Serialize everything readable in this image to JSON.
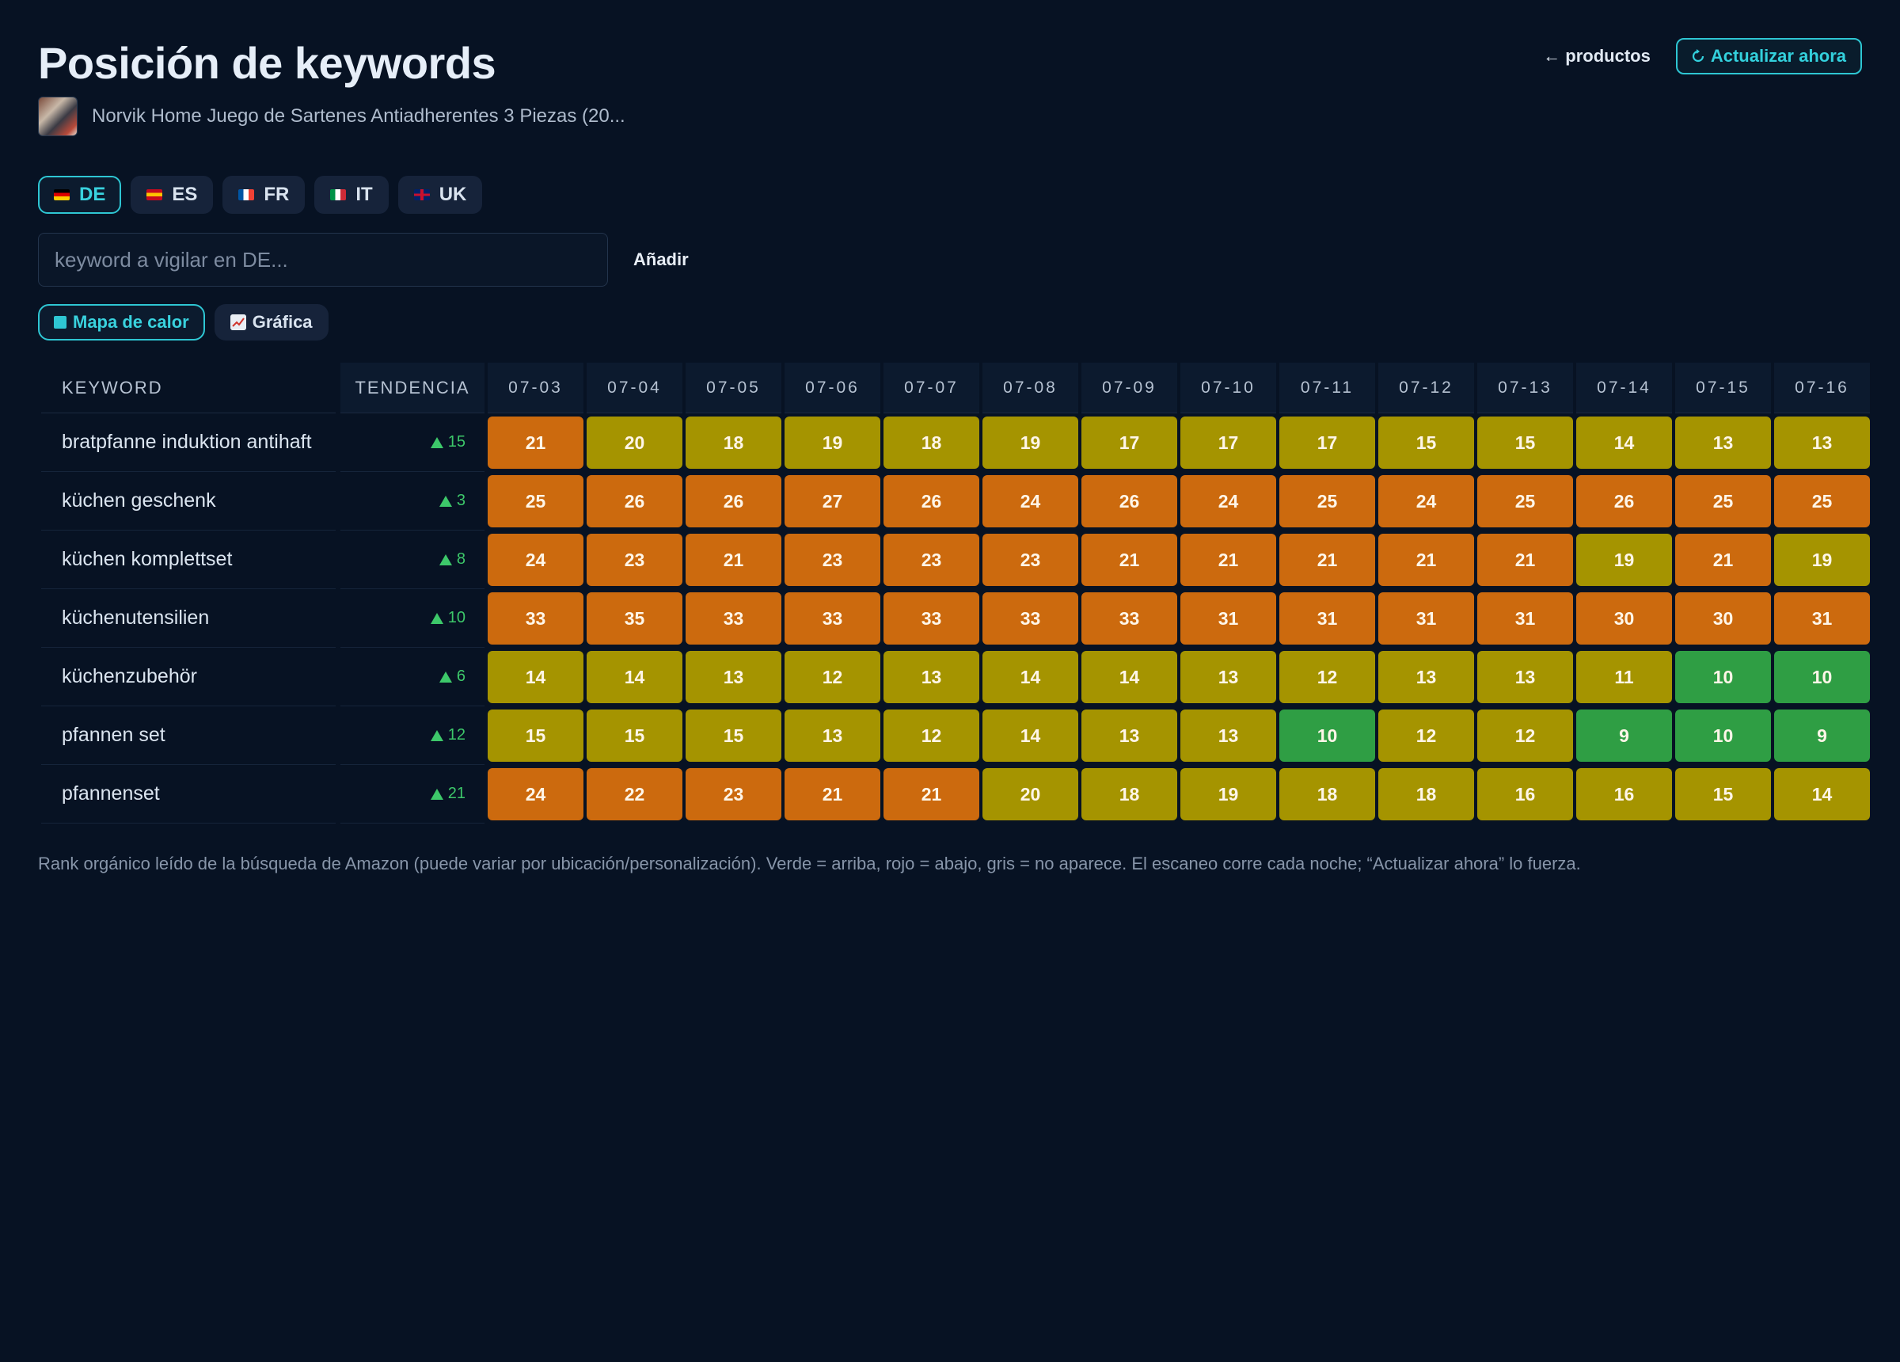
{
  "header": {
    "title": "Posición de keywords",
    "product_name": "Norvik Home Juego de Sartenes Antiadherentes 3 Piezas (20...",
    "back_label": "← productos",
    "refresh_icon": "refresh-icon",
    "refresh_label": "Actualizar ahora"
  },
  "markets": [
    {
      "code": "DE",
      "flag_colors": [
        "#000000",
        "#dd0000",
        "#ffce00"
      ],
      "active": true
    },
    {
      "code": "ES",
      "flag_colors": [
        "#c60b1e",
        "#ffc400",
        "#c60b1e"
      ],
      "active": false
    },
    {
      "code": "FR",
      "flag_colors": [
        "#0055a4",
        "#ffffff",
        "#ef4135"
      ],
      "active": false
    },
    {
      "code": "IT",
      "flag_colors": [
        "#009246",
        "#ffffff",
        "#ce2b37"
      ],
      "active": false
    },
    {
      "code": "UK",
      "flag_colors": [
        "#012169",
        "#ffffff",
        "#c8102e"
      ],
      "active": false
    }
  ],
  "add_keyword": {
    "placeholder": "keyword a vigilar en DE...",
    "button_label": "Añadir"
  },
  "views": {
    "heatmap_label": "Mapa de calor",
    "chart_label": "Gráfica"
  },
  "table": {
    "col_keyword": "KEYWORD",
    "col_trend": "TENDENCIA",
    "dates": [
      "07-03",
      "07-04",
      "07-05",
      "07-06",
      "07-07",
      "07-08",
      "07-09",
      "07-10",
      "07-11",
      "07-12",
      "07-13",
      "07-14",
      "07-15",
      "07-16"
    ],
    "rows": [
      {
        "keyword": "bratpfanne induktion antihaft",
        "trend": "15",
        "ranks": [
          21,
          20,
          18,
          19,
          18,
          19,
          17,
          17,
          17,
          15,
          15,
          14,
          13,
          13
        ]
      },
      {
        "keyword": "küchen geschenk",
        "trend": "3",
        "ranks": [
          25,
          26,
          26,
          27,
          26,
          24,
          26,
          24,
          25,
          24,
          25,
          26,
          25,
          25
        ]
      },
      {
        "keyword": "küchen komplettset",
        "trend": "8",
        "ranks": [
          24,
          23,
          21,
          23,
          23,
          23,
          21,
          21,
          21,
          21,
          21,
          19,
          21,
          19
        ]
      },
      {
        "keyword": "küchenutensilien",
        "trend": "10",
        "ranks": [
          33,
          35,
          33,
          33,
          33,
          33,
          33,
          31,
          31,
          31,
          31,
          30,
          30,
          31
        ]
      },
      {
        "keyword": "küchenzubehör",
        "trend": "6",
        "ranks": [
          14,
          14,
          13,
          12,
          13,
          14,
          14,
          13,
          12,
          13,
          13,
          11,
          10,
          10
        ]
      },
      {
        "keyword": "pfannen set",
        "trend": "12",
        "ranks": [
          15,
          15,
          15,
          13,
          12,
          14,
          13,
          13,
          10,
          12,
          12,
          9,
          10,
          9
        ]
      },
      {
        "keyword": "pfannenset",
        "trend": "21",
        "ranks": [
          24,
          22,
          23,
          21,
          21,
          20,
          18,
          19,
          18,
          18,
          16,
          16,
          15,
          14
        ]
      }
    ]
  },
  "colors": {
    "good": "#2f9e44",
    "mid": "#a59400",
    "bad": "#cc6a0e",
    "accent": "#2ec6d3",
    "trend_up": "#3dc86a"
  },
  "footnote": "Rank orgánico leído de la búsqueda de Amazon (puede variar por ubicación/personalización). Verde = arriba, rojo = abajo, gris = no aparece. El escaneo corre cada noche; “Actualizar ahora” lo fuerza."
}
